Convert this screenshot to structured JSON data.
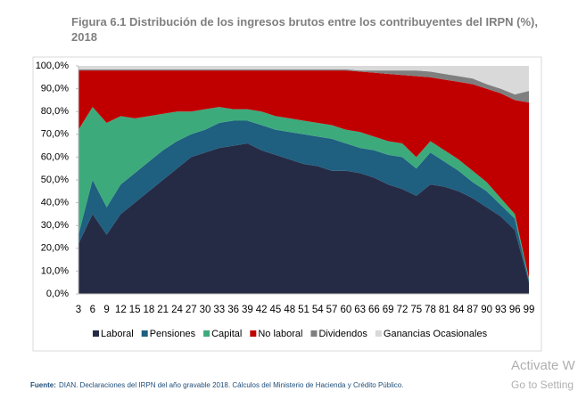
{
  "chart_data": {
    "type": "stacked_area",
    "title": "Figura 6.1 Distribución de los ingresos brutos entre los contribuyentes del IRPN (%), 2018",
    "categories": [
      3,
      6,
      9,
      12,
      15,
      18,
      21,
      24,
      27,
      30,
      33,
      36,
      39,
      42,
      45,
      48,
      51,
      54,
      57,
      60,
      63,
      66,
      69,
      72,
      75,
      78,
      81,
      84,
      87,
      90,
      93,
      96,
      99
    ],
    "series": [
      {
        "name": "Laboral",
        "color": "#262b45",
        "values": [
          22,
          35,
          26,
          35,
          40,
          45,
          50,
          55,
          60,
          62,
          64,
          65,
          66,
          63,
          61,
          59,
          57,
          56,
          54,
          54,
          53,
          51,
          48,
          46,
          43,
          48,
          47,
          45,
          42,
          38,
          34,
          28,
          5
        ]
      },
      {
        "name": "Pensiones",
        "color": "#1f5f80",
        "values": [
          4,
          15,
          12,
          13,
          13,
          13,
          13,
          12,
          10,
          10,
          11,
          11,
          10,
          11,
          11,
          12,
          13,
          13,
          14,
          12,
          11,
          12,
          13,
          14,
          12,
          14,
          11,
          9,
          7,
          7,
          5,
          5,
          1
        ]
      },
      {
        "name": "Capital",
        "color": "#3daa7c",
        "values": [
          46,
          32,
          37,
          30,
          24,
          20,
          16,
          13,
          10,
          9,
          7,
          5,
          5,
          6,
          6,
          6,
          6,
          6,
          6,
          6,
          7,
          6,
          6,
          6,
          5,
          5,
          5,
          5,
          5,
          4,
          3,
          2,
          1
        ]
      },
      {
        "name": "No laboral",
        "color": "#c00000",
        "values": [
          26,
          16,
          23,
          20,
          21,
          20,
          19,
          18,
          18,
          17,
          16,
          17,
          17,
          18,
          20,
          21,
          22,
          23,
          24,
          26,
          26.5,
          28,
          29.5,
          30,
          35.5,
          28,
          31,
          34,
          38,
          41,
          46,
          50,
          77
        ]
      },
      {
        "name": "Dividendos",
        "color": "#7f7f7f",
        "values": [
          0.5,
          0.5,
          0.5,
          0.5,
          0.5,
          0.5,
          0.5,
          0.5,
          0.5,
          0.5,
          0.5,
          0.5,
          0.5,
          0.5,
          0.5,
          0.5,
          0.5,
          0.5,
          0.5,
          0.5,
          0.5,
          1,
          1.5,
          2,
          2.5,
          2.5,
          2.5,
          2.5,
          2.5,
          2,
          2,
          2.5,
          5
        ]
      },
      {
        "name": "Ganancias Ocasionales",
        "color": "#d9d9d9",
        "values": [
          1.5,
          1.5,
          1.5,
          1.5,
          1.5,
          1.5,
          1.5,
          1.5,
          1.5,
          1.5,
          1.5,
          1.5,
          1.5,
          1.5,
          1.5,
          1.5,
          1.5,
          1.5,
          1.5,
          1.5,
          2,
          2,
          2,
          2,
          2,
          2.5,
          3.5,
          4.5,
          5.5,
          8,
          10,
          12.5,
          11
        ]
      }
    ],
    "ylim": [
      0,
      100
    ],
    "yticks": [
      {
        "value": 0,
        "label": "0,0%"
      },
      {
        "value": 10,
        "label": "10,0%"
      },
      {
        "value": 20,
        "label": "20,0%"
      },
      {
        "value": 30,
        "label": "30,0%"
      },
      {
        "value": 40,
        "label": "40,0%"
      },
      {
        "value": 50,
        "label": "50,0%"
      },
      {
        "value": 60,
        "label": "60,0%"
      },
      {
        "value": 70,
        "label": "70,0%"
      },
      {
        "value": 80,
        "label": "80,0%"
      },
      {
        "value": 90,
        "label": "90,0%"
      },
      {
        "value": 100,
        "label": "100,0%"
      }
    ],
    "legend": "bottom",
    "source_label": "Fuente:",
    "source_text": "DIAN. Declaraciones del IRPN del año gravable 2018. Cálculos del Ministerio de Hacienda y Crédito Público."
  },
  "watermark": {
    "line1": "Activate W",
    "line2": "Go to Setting"
  }
}
